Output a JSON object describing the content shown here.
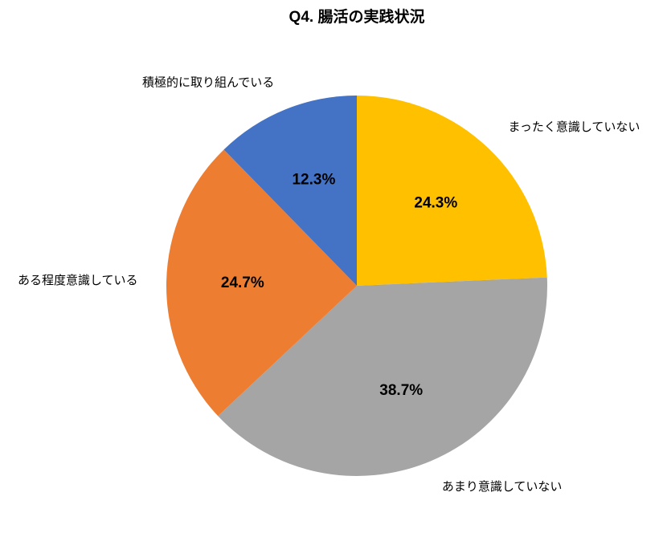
{
  "chart_data": {
    "type": "pie",
    "title": "Q4. 腸活の実践状況",
    "categories": [
      "まったく意識していない",
      "あまり意識していない",
      "ある程度意識している",
      "積極的に取り組んでいる"
    ],
    "values": [
      24.3,
      38.7,
      24.7,
      12.3
    ],
    "value_labels": [
      "24.3%",
      "38.7%",
      "24.7%",
      "12.3%"
    ],
    "colors": [
      "#ffc000",
      "#a5a5a5",
      "#ed7d31",
      "#4472c4"
    ]
  }
}
